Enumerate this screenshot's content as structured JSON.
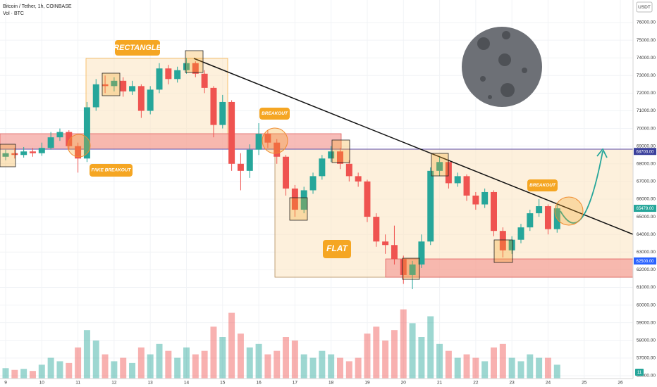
{
  "chart_data": {
    "type": "candlestick",
    "title": "Bitcoin / Tether, 1h, COINBASE",
    "subtitle": "Vol · BTC",
    "currency": "USDT",
    "volume_badge": "11",
    "annotations": [
      "RECTANGLE",
      "FAKE BREAKOUT",
      "BREAKOUT",
      "BREAKOUT",
      "FLAT"
    ],
    "levels": [
      {
        "value": 68700,
        "label": "68700.00"
      },
      {
        "value": 62500,
        "label": "62500.00"
      }
    ],
    "last_price": {
      "value": 65479,
      "label": "65479.00"
    },
    "up_color": "#26a69a",
    "down_color": "#ef5350",
    "xlim": [
      8.844,
      26.35
    ],
    "xticks": [
      9,
      10,
      11,
      12,
      13,
      14,
      15,
      16,
      17,
      18,
      19,
      20,
      21,
      22,
      23,
      24,
      25,
      26
    ],
    "ylim": [
      55840,
      77275
    ],
    "yticks": [
      {
        "value": 56000,
        "label": "56000.00"
      },
      {
        "value": 57000,
        "label": "57000.00"
      },
      {
        "value": 58000,
        "label": "58000.00"
      },
      {
        "value": 59000,
        "label": "59000.00"
      },
      {
        "value": 60000,
        "label": "60000.00"
      },
      {
        "value": 61000,
        "label": "61000.00"
      },
      {
        "value": 62000,
        "label": "62000.00"
      },
      {
        "value": 63000,
        "label": "63000.00"
      },
      {
        "value": 64000,
        "label": "64000.00"
      },
      {
        "value": 65000,
        "label": "65000.00"
      },
      {
        "value": 66000,
        "label": "66000.00"
      },
      {
        "value": 67000,
        "label": "67000.00"
      },
      {
        "value": 68000,
        "label": "68000.00"
      },
      {
        "value": 69000,
        "label": "69000.00"
      },
      {
        "value": 70000,
        "label": "70000.00"
      },
      {
        "value": 71000,
        "label": "71000.00"
      },
      {
        "value": 72000,
        "label": "72000.00"
      },
      {
        "value": 73000,
        "label": "73000.00"
      },
      {
        "value": 74000,
        "label": "74000.00"
      },
      {
        "value": 75000,
        "label": "75000.00"
      },
      {
        "value": 76000,
        "label": "76000.00"
      }
    ],
    "y2lim": [
      0,
      2400
    ],
    "grid": true,
    "x": [
      9,
      9.25,
      9.5,
      9.75,
      10,
      10.25,
      10.5,
      10.75,
      11,
      11.25,
      11.5,
      11.75,
      12,
      12.25,
      12.5,
      12.75,
      13,
      13.25,
      13.5,
      13.75,
      14,
      14.25,
      14.5,
      14.75,
      15,
      15.25,
      15.5,
      15.75,
      16,
      16.25,
      16.5,
      16.75,
      17,
      17.25,
      17.5,
      17.75,
      18,
      18.25,
      18.5,
      18.75,
      19,
      19.25,
      19.5,
      19.75,
      20,
      20.25,
      20.5,
      20.75,
      21,
      21.25,
      21.5,
      21.75,
      22,
      22.25,
      22.5,
      22.75,
      23,
      23.25,
      23.5,
      23.75,
      24,
      24.25
    ],
    "open": [
      68400,
      68600,
      68500,
      68700,
      68600,
      68900,
      69500,
      69800,
      69000,
      68300,
      71200,
      72500,
      72400,
      72700,
      72100,
      72400,
      71000,
      72200,
      73400,
      72800,
      73300,
      73700,
      73100,
      72300,
      70200,
      71500,
      68000,
      67600,
      68800,
      69700,
      69200,
      68400,
      66600,
      65400,
      66500,
      67300,
      68300,
      68700,
      68000,
      67300,
      67000,
      65000,
      63600,
      63400,
      62600,
      61700,
      62300,
      63600,
      67600,
      68100,
      66900,
      67300,
      66200,
      65700,
      66400,
      64200,
      63100,
      63700,
      64400,
      65200,
      65600,
      64300
    ],
    "high": [
      68800,
      68900,
      68950,
      68900,
      69200,
      69800,
      70000,
      69900,
      69200,
      71500,
      72800,
      73000,
      72900,
      72900,
      72700,
      72500,
      72400,
      73700,
      73600,
      73500,
      74000,
      73800,
      73300,
      72400,
      71900,
      71600,
      68600,
      69100,
      70300,
      69900,
      69400,
      68500,
      66800,
      66700,
      67500,
      68500,
      69000,
      68900,
      68200,
      67500,
      67100,
      65200,
      64000,
      64500,
      62800,
      62500,
      64000,
      67800,
      68400,
      68200,
      67500,
      67400,
      66400,
      66600,
      66500,
      64400,
      63900,
      64600,
      65400,
      66000,
      65700,
      65800
    ],
    "low": [
      68200,
      68300,
      68350,
      68400,
      68450,
      68800,
      69300,
      68800,
      67500,
      68100,
      71000,
      72000,
      72100,
      71800,
      71900,
      70600,
      70800,
      72000,
      72500,
      72600,
      73100,
      72900,
      72000,
      69500,
      70000,
      67600,
      66500,
      67200,
      68500,
      68900,
      68000,
      66200,
      65000,
      65200,
      66300,
      67100,
      68100,
      67700,
      67000,
      66700,
      64700,
      63300,
      62900,
      62300,
      61200,
      60900,
      62100,
      63400,
      67300,
      66600,
      66700,
      65900,
      65400,
      65500,
      63900,
      62700,
      62900,
      63500,
      64200,
      65000,
      64000,
      64100
    ],
    "close": [
      68600,
      68500,
      68700,
      68600,
      68900,
      69500,
      69800,
      69000,
      68300,
      71200,
      72500,
      72400,
      72700,
      72100,
      72400,
      71000,
      72200,
      73400,
      72800,
      73300,
      73700,
      73100,
      72300,
      70200,
      71500,
      68000,
      67600,
      68800,
      69700,
      69200,
      68400,
      66600,
      65400,
      66500,
      67300,
      68300,
      68700,
      68000,
      67300,
      67000,
      65000,
      63600,
      63400,
      62600,
      61700,
      62300,
      63600,
      67600,
      68100,
      66900,
      67300,
      66200,
      65700,
      66400,
      64200,
      63100,
      63700,
      64400,
      65200,
      65600,
      64300,
      65479
    ],
    "volume": [
      300,
      250,
      280,
      220,
      400,
      600,
      500,
      450,
      900,
      1400,
      1100,
      700,
      500,
      600,
      450,
      900,
      700,
      1000,
      800,
      600,
      900,
      700,
      800,
      1500,
      1200,
      1900,
      1300,
      900,
      1000,
      700,
      800,
      1200,
      1100,
      700,
      600,
      800,
      700,
      600,
      500,
      600,
      1300,
      1500,
      1100,
      1400,
      2000,
      1600,
      1200,
      1800,
      1000,
      800,
      600,
      700,
      600,
      500,
      900,
      1000,
      600,
      500,
      700,
      600,
      600,
      400
    ]
  }
}
